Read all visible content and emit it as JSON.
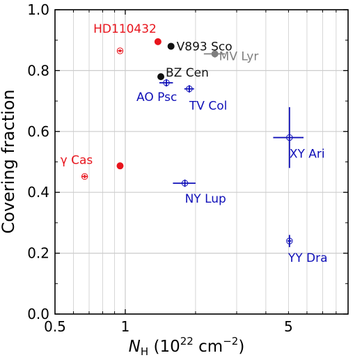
{
  "chart_data": {
    "type": "scatter",
    "xlabel_main": "N",
    "xlabel_sub": "H",
    "xlabel_unit": "(10",
    "xlabel_exp": "22",
    "xlabel_cm": " cm",
    "xlabel_cm_exp": "−2",
    "xlabel_close": ")",
    "ylabel": "Covering fraction",
    "x_scale": "log",
    "xlim": [
      0.5,
      9.0
    ],
    "ylim": [
      0.0,
      1.0
    ],
    "x_tick_labels": [
      {
        "value": 0.5,
        "label": "0.5"
      },
      {
        "value": 1,
        "label": "1"
      },
      {
        "value": 5,
        "label": "5"
      }
    ],
    "y_tick_labels": [
      {
        "value": 0.0,
        "label": "0.0"
      },
      {
        "value": 0.2,
        "label": "0.2"
      },
      {
        "value": 0.4,
        "label": "0.4"
      },
      {
        "value": 0.6,
        "label": "0.6"
      },
      {
        "value": 0.8,
        "label": "0.8"
      },
      {
        "value": 1.0,
        "label": "1.0"
      }
    ],
    "grid": true,
    "colors": {
      "red": "#e8141c",
      "black": "#111111",
      "gray": "#7f7f7f",
      "blue": "#1010b8"
    },
    "points": [
      {
        "name": "HD110432",
        "x": 0.95,
        "y": 0.865,
        "color": "red",
        "marker": "open",
        "xerr": 0.02,
        "yerr": 0.005,
        "show_label": false
      },
      {
        "name": "HD110432",
        "x": 1.38,
        "y": 0.895,
        "color": "red",
        "marker": "filled",
        "show_label": true
      },
      {
        "name": "γ Cas",
        "x": 0.67,
        "y": 0.452,
        "color": "red",
        "marker": "open",
        "xerr": 0.02,
        "yerr": 0.006,
        "show_label": true
      },
      {
        "name": "γ Cas",
        "x": 0.95,
        "y": 0.487,
        "color": "red",
        "marker": "filled",
        "show_label": false
      },
      {
        "name": "V893 Sco",
        "x": 1.57,
        "y": 0.88,
        "color": "black",
        "marker": "filled",
        "show_label": true
      },
      {
        "name": "BZ Cen",
        "x": 1.42,
        "y": 0.78,
        "color": "black",
        "marker": "filled",
        "show_label": true
      },
      {
        "name": "MV Lyr",
        "x": 2.42,
        "y": 0.855,
        "color": "gray",
        "marker": "filled",
        "xerr": 0.25,
        "yerr": 0.012,
        "show_label": true
      },
      {
        "name": "AO Psc",
        "x": 1.5,
        "y": 0.76,
        "color": "blue",
        "marker": "open",
        "xerr": 0.1,
        "yerr": 0.012,
        "show_label": true
      },
      {
        "name": "TV Col",
        "x": 1.88,
        "y": 0.74,
        "color": "blue",
        "marker": "open",
        "xerr": 0.09,
        "yerr": 0.012,
        "show_label": true
      },
      {
        "name": "NY Lup",
        "x": 1.8,
        "y": 0.43,
        "color": "blue",
        "marker": "open",
        "xerr": 0.2,
        "yerr": 0.012,
        "show_label": true
      },
      {
        "name": "XY Ari",
        "x": 5.05,
        "y": 0.58,
        "color": "blue",
        "marker": "open",
        "xerr": 0.75,
        "yerr": 0.1,
        "show_label": true
      },
      {
        "name": "YY Dra",
        "x": 5.05,
        "y": 0.24,
        "color": "blue",
        "marker": "open",
        "xerr": 0.1,
        "yerr": 0.02,
        "show_label": true
      }
    ]
  }
}
